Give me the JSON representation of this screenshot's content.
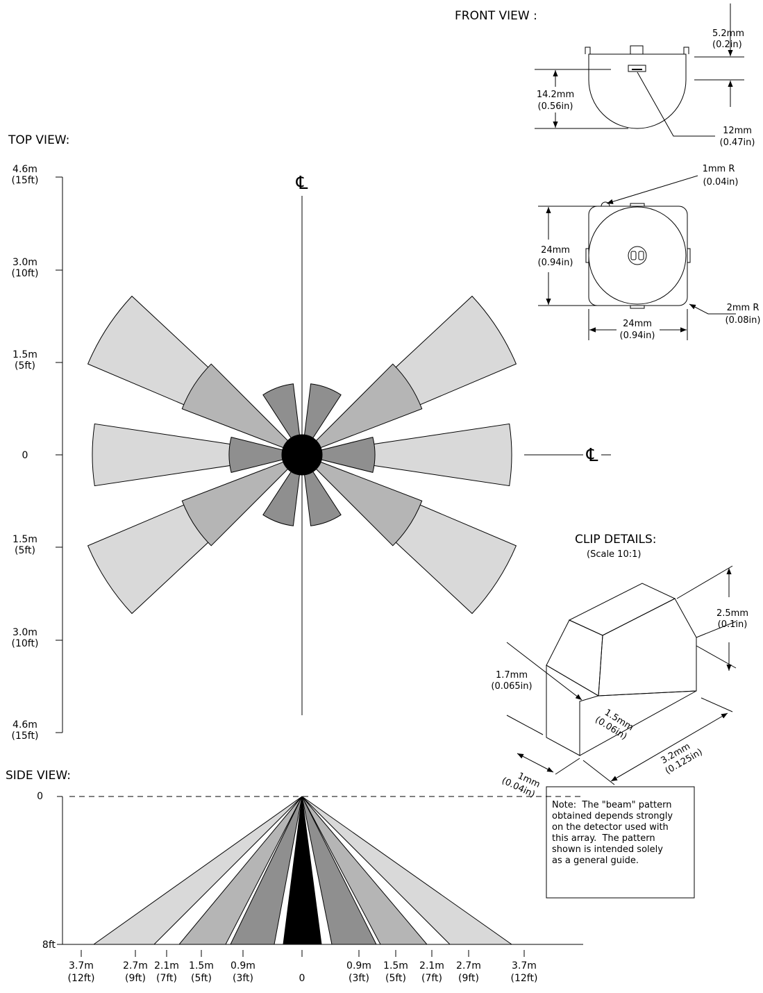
{
  "front_view": {
    "title": "FRONT VIEW :",
    "clip_offset": [
      "5.2mm",
      "(0.2in)"
    ],
    "height": [
      "14.2mm",
      "(0.56in)"
    ],
    "window": [
      "12mm",
      "(0.47in)"
    ]
  },
  "bottom_view": {
    "corner_small": [
      "1mm R",
      "(0.04in)"
    ],
    "height": [
      "24mm",
      "(0.94in)"
    ],
    "width": [
      "24mm",
      "(0.94in)"
    ],
    "corner_large": [
      "2mm R",
      "(0.08in)"
    ]
  },
  "top_view": {
    "title": "TOP VIEW:",
    "centerline": "℄",
    "y_labels": [
      [
        "4.6m",
        "(15ft)"
      ],
      [
        "3.0m",
        "(10ft)"
      ],
      [
        "1.5m",
        "(5ft)"
      ],
      [
        "0"
      ],
      [
        "1.5m",
        "(5ft)"
      ],
      [
        "3.0m",
        "(10ft)"
      ],
      [
        "4.6m",
        "(15ft)"
      ]
    ]
  },
  "clip_details": {
    "title": "CLIP DETAILS:",
    "scale": "(Scale 10:1)",
    "height": [
      "2.5mm",
      "(0.1in)"
    ],
    "ledge": [
      "1.7mm",
      "(0.065in)"
    ],
    "depth": [
      "1.5mm",
      "(0.06in)"
    ],
    "length": [
      "3.2mm",
      "(0.125in)"
    ],
    "width": [
      "1mm",
      "(0.04in)"
    ]
  },
  "side_view": {
    "title": "SIDE VIEW:",
    "y_labels": [
      "0",
      "8ft"
    ],
    "x_labels": [
      [
        "3.7m",
        "(12ft)"
      ],
      [
        "2.7m",
        "(9ft)"
      ],
      [
        "2.1m",
        "(7ft)"
      ],
      [
        "1.5m",
        "(5ft)"
      ],
      [
        "0.9m",
        "(3ft)"
      ],
      [
        "0"
      ],
      [
        "0.9m",
        "(3ft)"
      ],
      [
        "1.5m",
        "(5ft)"
      ],
      [
        "2.1m",
        "(7ft)"
      ],
      [
        "2.7m",
        "(9ft)"
      ],
      [
        "3.7m",
        "(12ft)"
      ]
    ],
    "note": [
      "Note:  The \"beam\" pattern",
      "obtained depends strongly",
      "on the detector used with",
      "this array.  The pattern",
      "shown is intended solely",
      "as a general guide."
    ]
  }
}
